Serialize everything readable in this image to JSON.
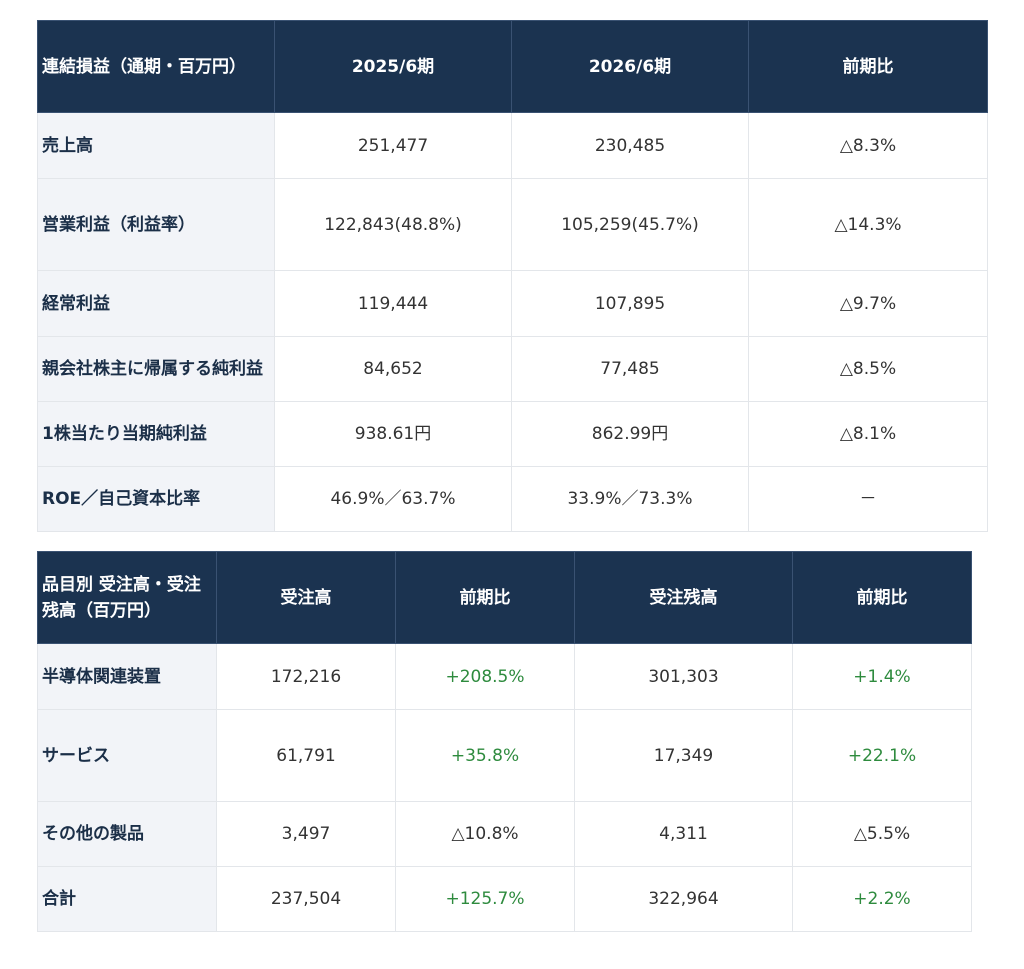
{
  "pl": {
    "headers": [
      "連結損益（通期・百万円）",
      "2025/6期",
      "2026/6期",
      "前期比"
    ],
    "rows": [
      {
        "label": "売上高",
        "v2025": "251,477",
        "v2026": "230,485",
        "change": "△8.3%"
      },
      {
        "label": "営業利益（利益率）",
        "v2025": "122,843(48.8%)",
        "v2026": "105,259(45.7%)",
        "change": "△14.3%"
      },
      {
        "label": "経常利益",
        "v2025": "119,444",
        "v2026": "107,895",
        "change": "△9.7%"
      },
      {
        "label": "親会社株主に帰属する純利益",
        "v2025": "84,652",
        "v2026": "77,485",
        "change": "△8.5%"
      },
      {
        "label": "1株当たり当期純利益",
        "v2025": "938.61円",
        "v2026": "862.99円",
        "change": "△8.1%"
      },
      {
        "label": "ROE／自己資本比率",
        "v2025": "46.9%／63.7%",
        "v2026": "33.9%／73.3%",
        "change": "－"
      }
    ]
  },
  "orders": {
    "headers": [
      "品目別 受注高・受注残高（百万円）",
      "受注高",
      "前期比",
      "受注残高",
      "前期比"
    ],
    "rows": [
      {
        "label": "半導体関連装置",
        "orders": "172,216",
        "orders_change": "+208.5%",
        "backlog": "301,303",
        "backlog_change": "+1.4%"
      },
      {
        "label": "サービス",
        "orders": "61,791",
        "orders_change": "+35.8%",
        "backlog": "17,349",
        "backlog_change": "+22.1%"
      },
      {
        "label": "その他の製品",
        "orders": "3,497",
        "orders_change": "△10.8%",
        "backlog": "4,311",
        "backlog_change": "△5.5%"
      },
      {
        "label": "合計",
        "orders": "237,504",
        "orders_change": "+125.7%",
        "backlog": "322,964",
        "backlog_change": "+2.2%"
      }
    ]
  },
  "colors": {
    "header_bg": "#1b3350",
    "label_bg": "#f2f4f8",
    "positive": "#2e8b3e"
  }
}
